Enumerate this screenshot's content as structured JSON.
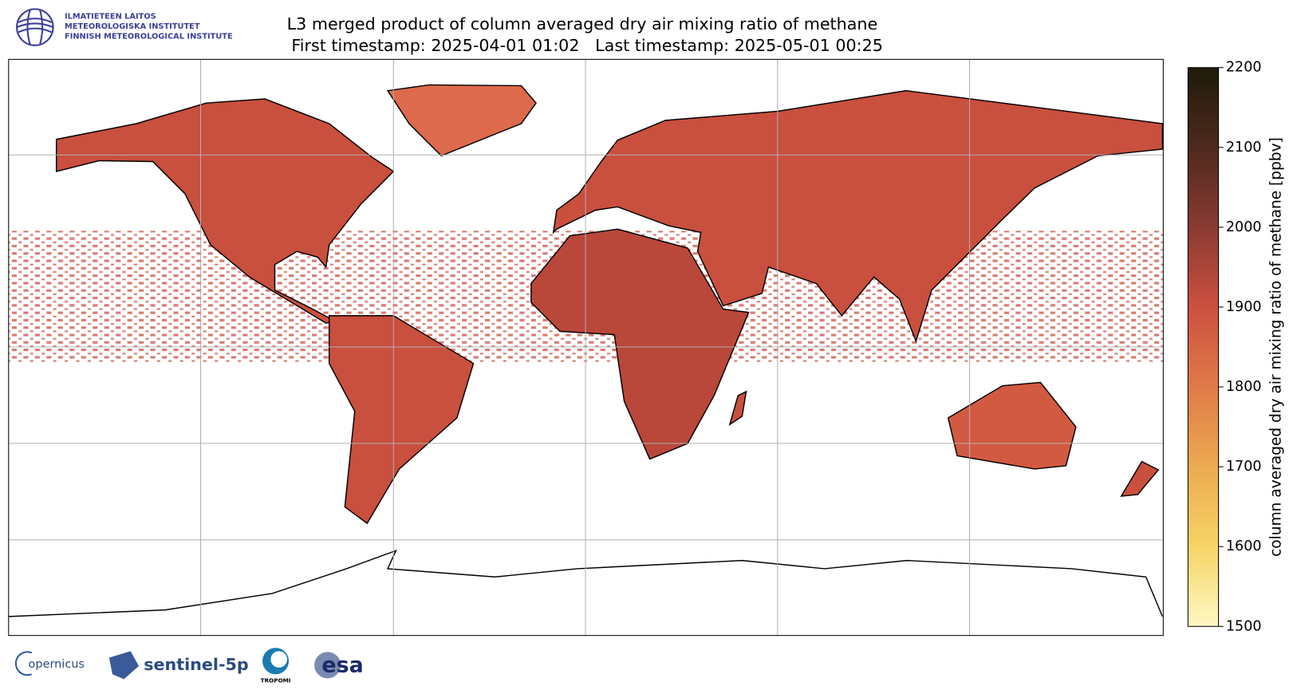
{
  "header": {
    "title": "L3 merged product of column averaged dry air mixing ratio of methane",
    "subtitle": "First timestamp: 2025-04-01 01:02   Last timestamp: 2025-05-01 00:25"
  },
  "institute_logo": {
    "lines": [
      "ILMATIETEEN LAITOS",
      "METEOROLOGISKA INSTITUTET",
      "FINNISH METEOROLOGICAL INSTITUTE"
    ]
  },
  "footer_logos": [
    "opernicus",
    "sentinel-5p",
    "TROPOMI",
    "esa"
  ],
  "colorbar": {
    "label": "column averaged dry air mixing ratio of methane [ppbv]",
    "lim": [
      1500,
      2200
    ],
    "ticks": [
      1500,
      1600,
      1700,
      1800,
      1900,
      2000,
      2100,
      2200
    ],
    "colors": [
      "#fff8c4",
      "#f6d466",
      "#ecaa50",
      "#e07a48",
      "#cc5040",
      "#8a3a32",
      "#4e2a1e",
      "#1e1a0a"
    ]
  }
}
